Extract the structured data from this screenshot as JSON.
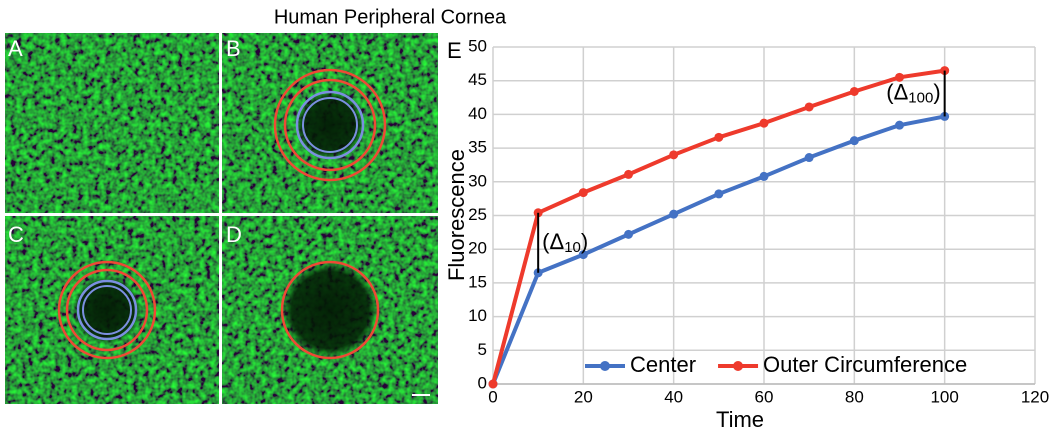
{
  "header": {
    "title": "Human Peripheral Cornea"
  },
  "panels": [
    "A",
    "B",
    "C",
    "D"
  ],
  "chart_data": {
    "type": "line",
    "panel_label": "E",
    "x_label": "Time",
    "y_label": "Fluorescence",
    "x": [
      0,
      10,
      20,
      30,
      40,
      50,
      60,
      70,
      80,
      90,
      100
    ],
    "series": [
      {
        "name": "Center",
        "color": "#4472c4",
        "values": [
          0,
          16.5,
          19.2,
          22.2,
          25.2,
          28.2,
          30.8,
          33.6,
          36.1,
          38.4,
          39.7
        ]
      },
      {
        "name": "Outer Circumference",
        "color": "#ee3a2c",
        "values": [
          0,
          25.4,
          28.4,
          31.1,
          34.0,
          36.6,
          38.7,
          41.1,
          43.4,
          45.5,
          46.5
        ]
      }
    ],
    "annotations": [
      {
        "x": 10,
        "parts": [
          "(Δ",
          "10",
          ")"
        ]
      },
      {
        "x": 100,
        "parts": [
          "(Δ",
          "100",
          ")"
        ]
      }
    ],
    "xlim": [
      0,
      120
    ],
    "xticks": [
      0,
      20,
      40,
      60,
      80,
      100,
      120
    ],
    "ylim": [
      0,
      50
    ],
    "yticks": [
      0,
      5,
      10,
      15,
      20,
      25,
      30,
      35,
      40,
      45,
      50
    ],
    "grid": true,
    "legend": "bottom"
  }
}
